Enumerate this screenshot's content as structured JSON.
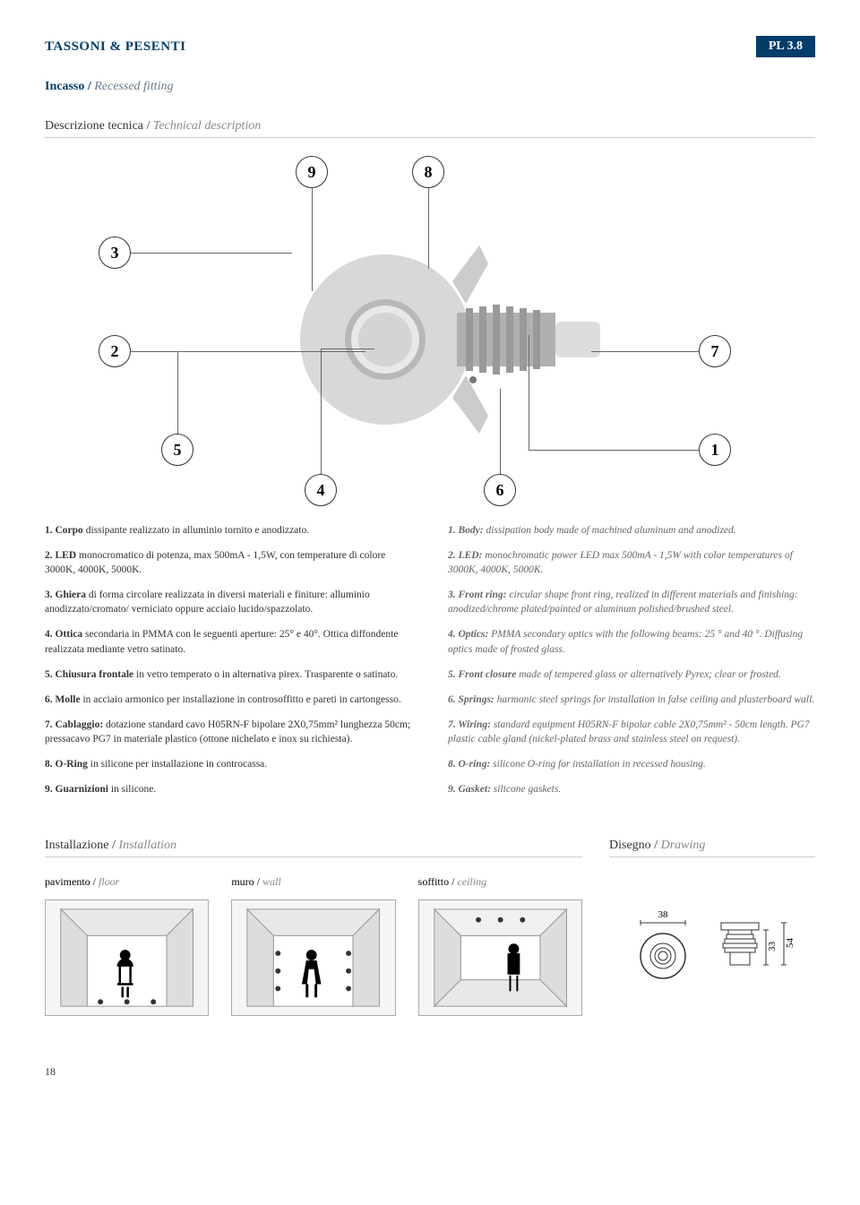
{
  "header": {
    "brand": "TASSONI & PESENTI",
    "model": "PL 3.8"
  },
  "subtitle": {
    "it": "Incasso / ",
    "en": "Recessed fitting"
  },
  "tech_desc_title": {
    "it": "Descrizione tecnica / ",
    "en": "Technical description"
  },
  "callouts": [
    "1",
    "2",
    "3",
    "4",
    "5",
    "6",
    "7",
    "8",
    "9"
  ],
  "desc_it": [
    "<b>1. Corpo</b> dissipante realizzato in alluminio tornito e anodizzato.",
    "<b>2. LED</b> monocromatico di potenza, max 500mA - 1,5W, con temperature di colore 3000K, 4000K, 5000K.",
    "<b>3. Ghiera</b> di forma circolare realizzata in diversi materiali e finiture: alluminio anodizzato/cromato/ verniciato oppure acciaio lucido/spazzolato.",
    "<b>4. Ottica</b> secondaria in PMMA con le seguenti aperture: 25° e 40°. Ottica diffondente realizzata mediante vetro satinato.",
    "<b>5. Chiusura frontale</b> in vetro temperato o in alternativa pirex. Trasparente o satinato.",
    "<b>6. Molle</b> in acciaio armonico per installazione in controsoffitto e pareti in cartongesso.",
    "<b>7. Cablaggio:</b> dotazione standard cavo H05RN-F bipolare 2X0,75mm² lunghezza 50cm; pressacavo PG7 in materiale plastico (ottone nichelato e inox su richiesta).",
    "<b>8. O-Ring</b> in silicone per installazione in controcassa.",
    "<b>9. Guarnizioni</b> in silicone."
  ],
  "desc_en": [
    "<b>1. Body:</b> dissipation body made of machined aluminum and anodized.",
    "<b>2. LED:</b> monochromatic power LED max 500mA - 1,5W with color temperatures of 3000K, 4000K, 5000K.",
    "<b>3. Front ring:</b> circular shape front ring, realized in different materials and finishing: anodized/chrome plated/painted or aluminum polished/brushed steel.",
    "<b>4. Optics:</b> PMMA secondary optics with the following beams: 25 ° and 40 °. Diffusing optics made of frosted glass.",
    "<b>5. Front closure</b> made of tempered glass or alternatively Pyrex; clear or frosted.",
    "<b>6. Springs:</b> harmonic steel springs for installation in false ceiling and plasterboard wall.",
    "<b>7. Wiring:</b> standard equipment H05RN-F bipolar cable 2X0,75mm² - 50cm length. PG7 plastic cable gland (nickel-plated brass and stainless steel on request).",
    "<b>8. O-ring:</b> silicone O-ring for installation in recessed housing.",
    "<b>9. Gasket:</b> silicone gaskets."
  ],
  "install_title": {
    "it": "Installazione / ",
    "en": "Installation"
  },
  "drawing_title": {
    "it": "Disegno / ",
    "en": "Drawing"
  },
  "install_labels": [
    {
      "it": "pavimento / ",
      "en": "floor"
    },
    {
      "it": "muro / ",
      "en": "wall"
    },
    {
      "it": "soffitto / ",
      "en": "ceiling"
    }
  ],
  "drawing_dims": {
    "width": "38",
    "height": "33",
    "total_h": "54"
  },
  "page_number": "18",
  "colors": {
    "brand_blue": "#003d6b",
    "text": "#333333",
    "muted": "#888888"
  }
}
